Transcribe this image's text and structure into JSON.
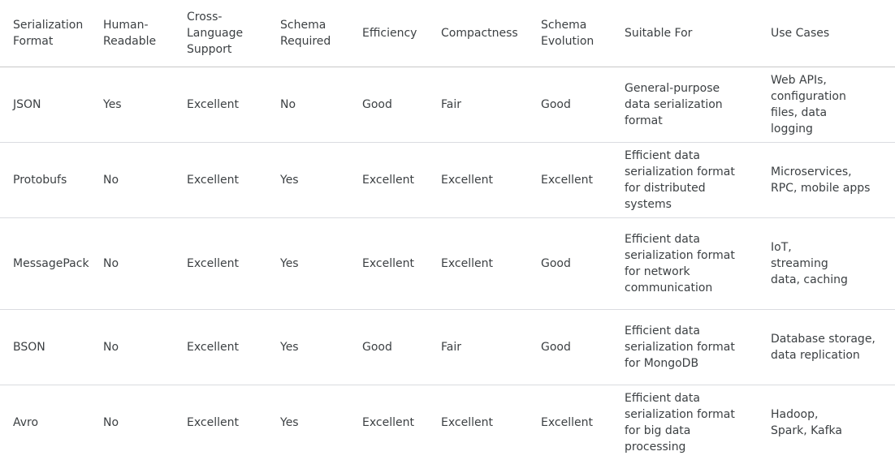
{
  "table": {
    "headers": [
      "Serialization Format",
      "Human-Readable",
      "Cross-Language Support",
      "Schema Required",
      "Efficiency",
      "Compactness",
      "Schema Evolution",
      "Suitable For",
      "Use Cases"
    ],
    "rows": [
      [
        "JSON",
        "Yes",
        "Excellent",
        "No",
        "Good",
        "Fair",
        "Good",
        "General-purpose data serialization format",
        "Web APIs, configuration files, data logging"
      ],
      [
        "Protobufs",
        "No",
        "Excellent",
        "Yes",
        "Excellent",
        "Excellent",
        "Excellent",
        "Efficient data serialization format for distributed systems",
        "Microservices, RPC, mobile apps"
      ],
      [
        "MessagePack",
        "No",
        "Excellent",
        "Yes",
        "Excellent",
        "Excellent",
        "Good",
        "Efficient data serialization format for network communication",
        "IoT, streaming data, caching"
      ],
      [
        "BSON",
        "No",
        "Excellent",
        "Yes",
        "Good",
        "Fair",
        "Good",
        "Efficient data serialization format for MongoDB",
        "Database storage, data replication"
      ],
      [
        "Avro",
        "No",
        "Excellent",
        "Yes",
        "Excellent",
        "Excellent",
        "Excellent",
        "Efficient data serialization format for big data processing",
        "Hadoop, Spark, Kafka"
      ]
    ]
  }
}
